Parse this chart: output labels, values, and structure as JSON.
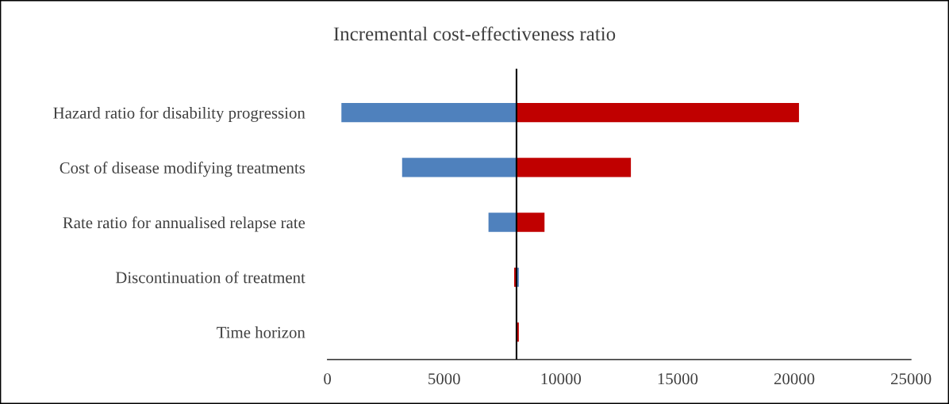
{
  "chart_data": {
    "type": "bar",
    "orientation": "horizontal",
    "title": "Incremental cost-effectiveness ratio",
    "categories": [
      "Hazard ratio for disability progression",
      "Cost of disease modifying treatments",
      "Rate ratio for annualised relapse rate",
      "Discontinuation of treatment",
      "Time horizon"
    ],
    "series": [
      {
        "color": "#4f81bd",
        "base": [
          8100,
          8100,
          8100,
          8100,
          null
        ],
        "values": [
          -7500,
          -4900,
          -1200,
          100,
          null
        ]
      },
      {
        "color": "#c00000",
        "base": [
          8100,
          8100,
          8100,
          8100,
          8100
        ],
        "values": [
          12100,
          4900,
          1200,
          -100,
          100
        ]
      }
    ],
    "xlim": [
      0,
      25000
    ],
    "xticks": [
      0,
      5000,
      10000,
      15000,
      20000,
      25000
    ],
    "ref_lines": [
      {
        "axis": "x",
        "value": 8100,
        "color": "#000000"
      }
    ],
    "grid": false
  }
}
